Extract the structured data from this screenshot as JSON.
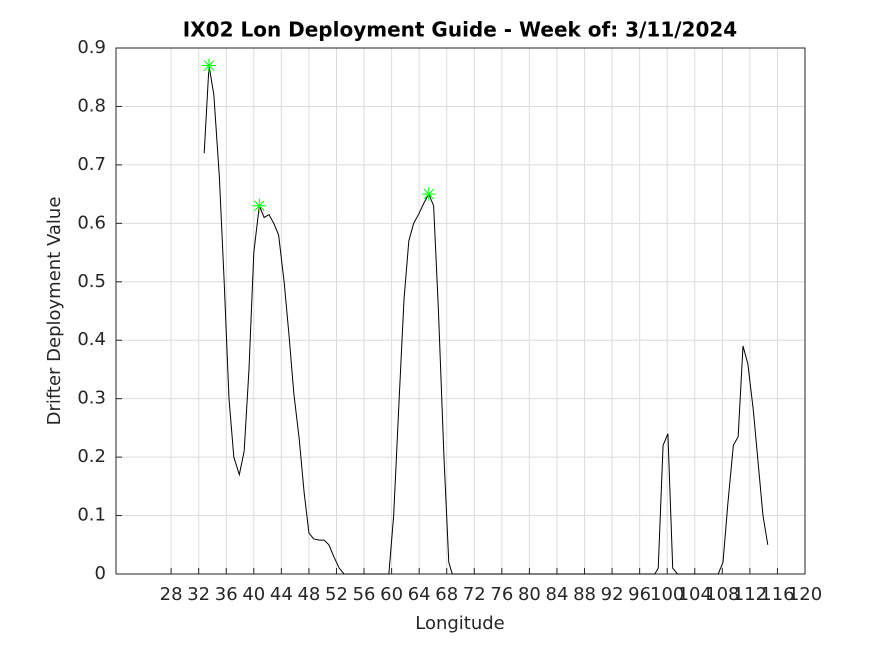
{
  "chart_data": {
    "type": "line",
    "title": "IX02 Lon Deployment Guide - Week of: 3/11/2024",
    "x_label": "Longitude",
    "y_label": "Drifter Deployment Value",
    "xlim": [
      20,
      120
    ],
    "ylim": [
      0,
      0.9
    ],
    "xticks": [
      28,
      32,
      36,
      40,
      44,
      48,
      52,
      56,
      60,
      64,
      68,
      72,
      76,
      80,
      84,
      88,
      92,
      96,
      100,
      104,
      108,
      112,
      116,
      120
    ],
    "yticks": [
      0,
      0.1,
      0.2,
      0.3,
      0.4,
      0.5,
      0.6,
      0.7,
      0.8,
      0.9
    ],
    "grid": true,
    "series": [
      {
        "color": "#000000",
        "x": [
          32.8,
          33.5,
          34.2,
          35,
          35.7,
          36.4,
          37.1,
          37.9,
          38.6,
          39.3,
          40,
          40.8,
          41.5,
          42.2,
          42.9,
          43.6,
          44.4,
          45.1,
          45.8,
          46.6,
          47.3,
          48,
          48.7,
          49.5,
          50.2,
          50.9,
          51.6,
          52.4,
          53.1,
          59.6,
          60.3,
          61.1,
          61.8,
          62.5,
          63.2,
          63.9,
          64.7,
          65.4,
          66.1,
          66.8,
          67.6,
          68.3,
          68.8,
          98.2,
          98.7,
          99.4,
          100.1,
          100.8,
          101.5,
          107.4,
          108.1,
          108.8,
          109.6,
          110.3,
          111,
          111.7,
          112.5,
          113.2,
          113.9,
          114.6
        ],
        "values": [
          0.72,
          0.87,
          0.82,
          0.68,
          0.5,
          0.3,
          0.2,
          0.17,
          0.21,
          0.35,
          0.55,
          0.63,
          0.61,
          0.615,
          0.6,
          0.58,
          0.5,
          0.41,
          0.31,
          0.23,
          0.14,
          0.07,
          0.06,
          0.058,
          0.058,
          0.05,
          0.03,
          0.01,
          0,
          0,
          0.1,
          0.3,
          0.47,
          0.57,
          0.6,
          0.615,
          0.635,
          0.65,
          0.63,
          0.45,
          0.2,
          0.02,
          0,
          0,
          0.01,
          0.22,
          0.24,
          0.01,
          0,
          0,
          0.02,
          0.12,
          0.22,
          0.235,
          0.39,
          0.36,
          0.28,
          0.19,
          0.1,
          0.05
        ]
      },
      {
        "color": "#00ff00",
        "marker": "asterisk",
        "x": [
          33.5,
          40.8,
          65.4
        ],
        "values": [
          0.87,
          0.63,
          0.65
        ]
      }
    ]
  }
}
